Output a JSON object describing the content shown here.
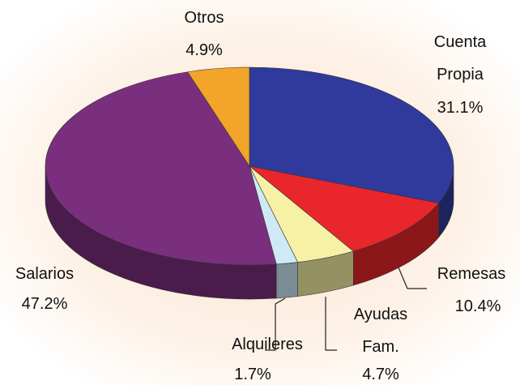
{
  "chart_data": {
    "type": "pie3d",
    "categories": [
      "Cuenta Propia",
      "Remesas",
      "Ayudas Fam.",
      "Alquileres",
      "Salarios",
      "Otros"
    ],
    "values": [
      31.1,
      10.4,
      4.7,
      1.7,
      47.2,
      4.9
    ],
    "value_labels": [
      "31.1%",
      "10.4%",
      "4.7%",
      "1.7%",
      "47.2%",
      "4.9%"
    ],
    "colors": [
      "#2f3a9c",
      "#e8262c",
      "#f6f1a4",
      "#cfe9f6",
      "#7a2f7e",
      "#f2a529"
    ]
  }
}
